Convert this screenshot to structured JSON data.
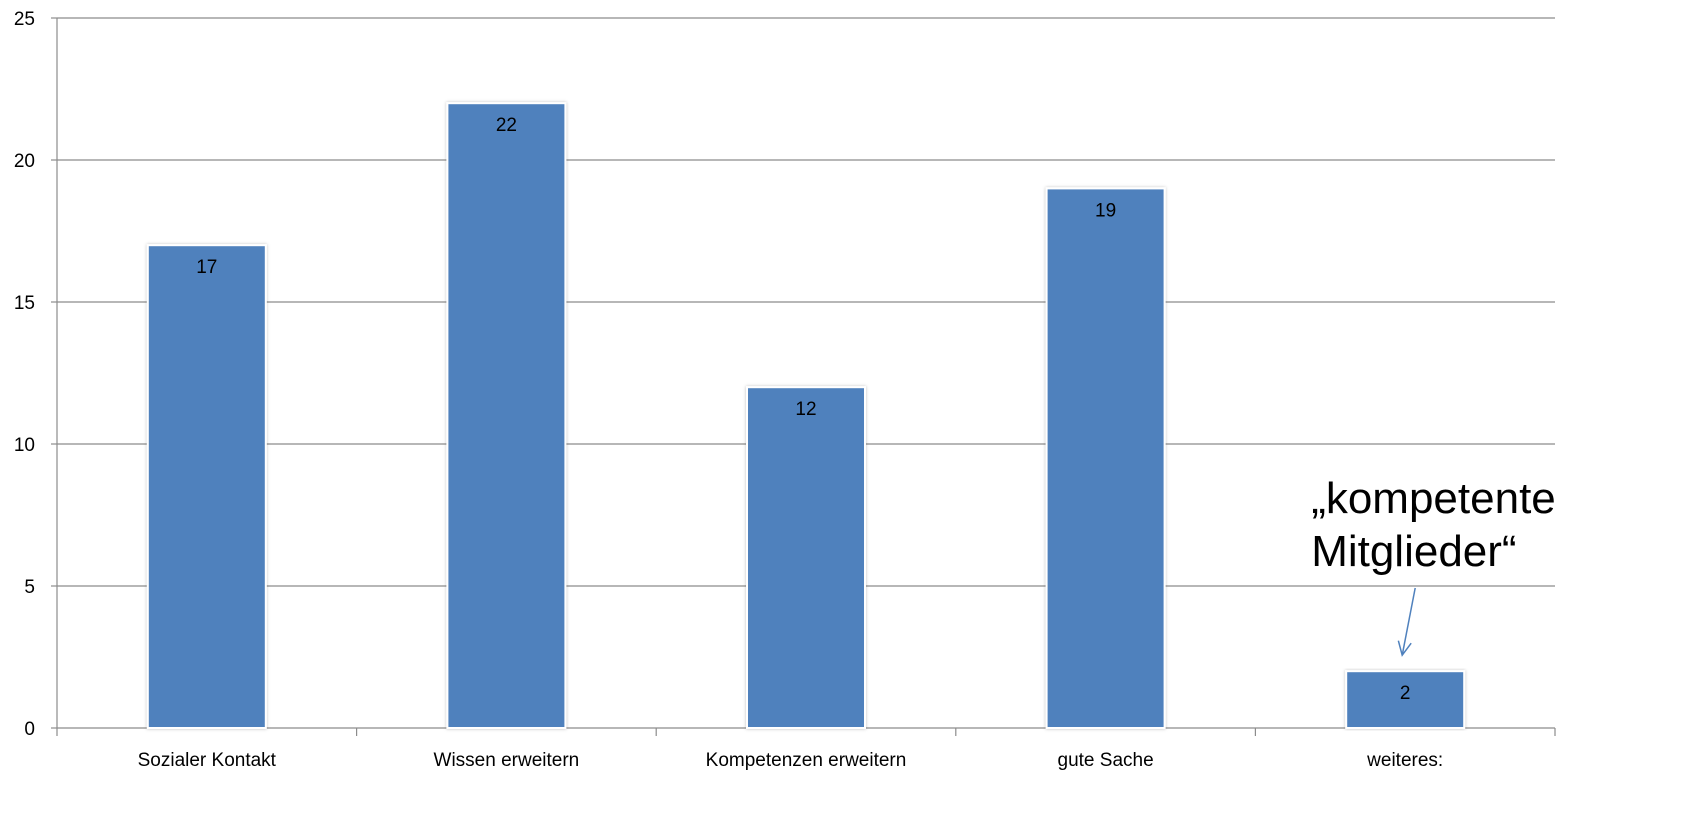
{
  "chart_data": {
    "type": "bar",
    "categories": [
      "Sozialer Kontakt",
      "Wissen erweitern",
      "Kompetenzen erweitern",
      "gute Sache",
      "weiteres:"
    ],
    "values": [
      17,
      22,
      12,
      19,
      2
    ],
    "ylim": [
      0,
      25
    ],
    "yticks": [
      0,
      5,
      10,
      15,
      20,
      25
    ],
    "grid": true,
    "legend": "none",
    "data_labels": [
      "17",
      "22",
      "12",
      "19",
      "2"
    ],
    "bar_color": "#4F81BD",
    "annotations": [
      {
        "lines": [
          "„kompetente",
          "Mitglieder“"
        ],
        "target_category": "weiteres:",
        "arrow_color": "#4F81BD"
      }
    ]
  }
}
